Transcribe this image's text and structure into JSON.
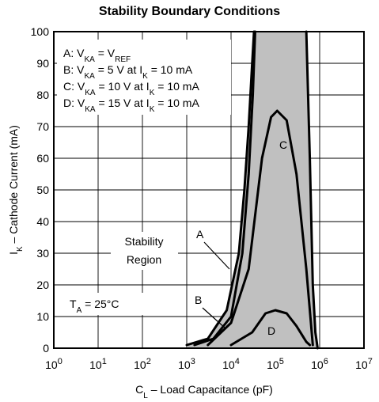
{
  "chart_data": {
    "type": "area",
    "title": "Stability Boundary Conditions",
    "xlabel": "C_L – Load Capacitance (pF)",
    "ylabel": "I_K – Cathode Current (mA)",
    "x_scale": "log",
    "xlim": [
      1,
      10000000
    ],
    "ylim": [
      0,
      100
    ],
    "grid": true,
    "x_ticks": [
      {
        "base": "10",
        "exp": "0",
        "value": 1
      },
      {
        "base": "10",
        "exp": "1",
        "value": 10
      },
      {
        "base": "10",
        "exp": "2",
        "value": 100
      },
      {
        "base": "10",
        "exp": "3",
        "value": 1000
      },
      {
        "base": "10",
        "exp": "4",
        "value": 10000
      },
      {
        "base": "10",
        "exp": "5",
        "value": 100000
      },
      {
        "base": "10",
        "exp": "6",
        "value": 1000000
      },
      {
        "base": "10",
        "exp": "7",
        "value": 10000000
      }
    ],
    "y_ticks": [
      "0",
      "10",
      "20",
      "30",
      "40",
      "50",
      "60",
      "70",
      "80",
      "90",
      "100"
    ],
    "legend": [
      {
        "key": "A",
        "text": "V_KA = V_REF"
      },
      {
        "key": "B",
        "text": "V_KA = 5 V at I_K = 10 mA"
      },
      {
        "key": "C",
        "text": "V_KA = 10 V at I_K = 10 mA"
      },
      {
        "key": "D",
        "text": "V_KA = 15 V at I_K = 10 mA"
      }
    ],
    "annotations": {
      "region_line1": "Stability",
      "region_line2": "Region",
      "temp": "T_A = 25°C",
      "label_A": "A",
      "label_B": "B",
      "label_C": "C",
      "label_D": "D"
    },
    "fill_color": "#c0c0c0",
    "series": [
      {
        "name": "A",
        "points": [
          [
            1000,
            1
          ],
          [
            3000,
            3
          ],
          [
            8000,
            12
          ],
          [
            15000,
            30
          ],
          [
            20000,
            50
          ],
          [
            25000,
            70
          ],
          [
            30000,
            90
          ],
          [
            33000,
            100
          ]
        ]
      },
      {
        "name": "B",
        "points": [
          [
            1500,
            1
          ],
          [
            4000,
            3
          ],
          [
            10000,
            10
          ],
          [
            18000,
            30
          ],
          [
            25000,
            55
          ],
          [
            31000,
            80
          ],
          [
            35000,
            100
          ]
        ]
      },
      {
        "name": "C",
        "points": [
          [
            3000,
            1
          ],
          [
            10000,
            8
          ],
          [
            25000,
            25
          ],
          [
            50000,
            60
          ],
          [
            80000,
            73
          ],
          [
            110000,
            75
          ],
          [
            180000,
            72
          ],
          [
            300000,
            55
          ],
          [
            500000,
            25
          ],
          [
            700000,
            1
          ]
        ]
      },
      {
        "name": "D",
        "points": [
          [
            10000,
            1
          ],
          [
            30000,
            5
          ],
          [
            60000,
            11
          ],
          [
            100000,
            12
          ],
          [
            180000,
            11
          ],
          [
            300000,
            7
          ],
          [
            500000,
            2
          ],
          [
            600000,
            1
          ]
        ]
      },
      {
        "name": "Right boundary",
        "points": [
          [
            500000,
            100
          ],
          [
            600000,
            60
          ],
          [
            700000,
            20
          ],
          [
            800000,
            5
          ],
          [
            900000,
            0
          ]
        ]
      }
    ]
  }
}
